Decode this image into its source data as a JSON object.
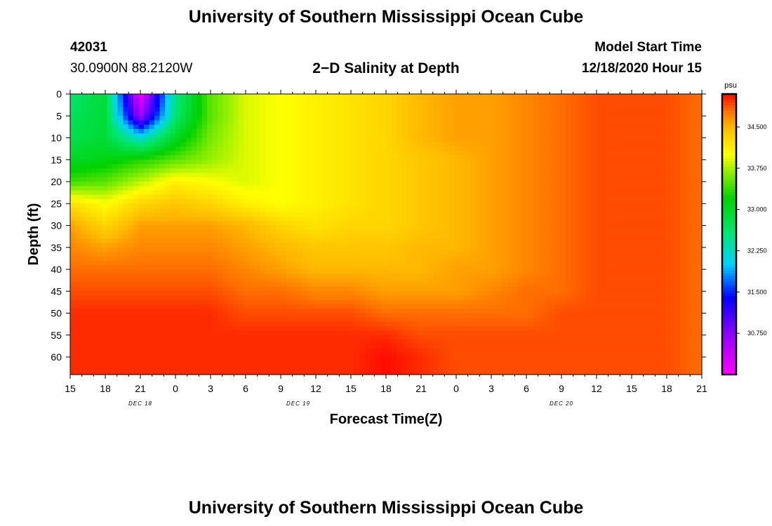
{
  "header": {
    "title": "University of Southern Mississippi Ocean Cube",
    "station_id": "42031",
    "coordinates": "30.0900N 88.2120W",
    "plot_title": "2−D Salinity at Depth",
    "model_label": "Model Start Time",
    "model_time": "12/18/2020 Hour 15"
  },
  "footer": {
    "title": "University of Southern Mississippi Ocean Cube"
  },
  "chart_data": {
    "type": "heatmap",
    "title": "2−D Salinity at Depth",
    "xlabel": "Forecast Time(Z)",
    "ylabel": "Depth (ft)",
    "x_tick_labels": [
      "15",
      "18",
      "21",
      "0",
      "3",
      "6",
      "9",
      "12",
      "15",
      "18",
      "21",
      "0",
      "3",
      "6",
      "9",
      "12",
      "15",
      "18",
      "21"
    ],
    "date_labels": [
      {
        "label": "DEC 18",
        "tick_index": 2
      },
      {
        "label": "DEC 19",
        "tick_index": 6.5
      },
      {
        "label": "DEC 20",
        "tick_index": 14
      }
    ],
    "y_ticks": [
      0,
      5,
      10,
      15,
      20,
      25,
      30,
      35,
      40,
      45,
      50,
      55,
      60
    ],
    "y_range": [
      0,
      64
    ],
    "colorbar": {
      "unit": "psu",
      "ticks": [
        "30.750",
        "31.500",
        "32.250",
        "33.000",
        "33.750",
        "34.500"
      ],
      "tick_values": [
        30.75,
        31.5,
        32.25,
        33.0,
        33.75,
        34.5
      ],
      "min": 30.0,
      "max": 35.1
    },
    "times_hours": [
      0,
      3,
      6,
      9,
      12,
      15,
      18,
      21,
      24,
      27,
      30,
      33,
      36,
      39,
      42,
      45,
      48,
      51,
      54
    ],
    "depths_ft": [
      0,
      5,
      10,
      15,
      20,
      25,
      30,
      35,
      40,
      45,
      50,
      55,
      60,
      64
    ],
    "salinity_psu": [
      [
        32.6,
        32.9,
        30.1,
        32.5,
        33.5,
        33.9,
        34.0,
        34.1,
        34.2,
        34.3,
        34.5,
        34.6,
        34.6,
        34.7,
        34.8,
        34.9,
        34.9,
        34.9,
        34.8
      ],
      [
        32.7,
        32.9,
        30.6,
        32.6,
        33.5,
        33.9,
        34.0,
        34.1,
        34.2,
        34.3,
        34.5,
        34.6,
        34.6,
        34.7,
        34.8,
        34.9,
        34.9,
        34.9,
        34.8
      ],
      [
        32.8,
        32.9,
        32.2,
        33.0,
        33.6,
        33.9,
        34.0,
        34.1,
        34.2,
        34.3,
        34.5,
        34.6,
        34.6,
        34.7,
        34.8,
        34.9,
        34.9,
        34.9,
        34.8
      ],
      [
        33.0,
        33.1,
        33.3,
        33.5,
        33.7,
        33.9,
        34.0,
        34.1,
        34.2,
        34.3,
        34.4,
        34.5,
        34.6,
        34.7,
        34.8,
        34.9,
        34.9,
        34.9,
        34.8
      ],
      [
        33.4,
        33.5,
        33.8,
        34.1,
        34.0,
        33.9,
        34.0,
        34.1,
        34.2,
        34.3,
        34.4,
        34.5,
        34.6,
        34.7,
        34.8,
        34.9,
        34.9,
        34.9,
        34.8
      ],
      [
        34.2,
        34.0,
        34.3,
        34.4,
        34.3,
        34.1,
        34.0,
        34.1,
        34.2,
        34.3,
        34.4,
        34.5,
        34.6,
        34.7,
        34.8,
        34.9,
        34.9,
        34.9,
        34.8
      ],
      [
        34.6,
        34.3,
        34.6,
        34.6,
        34.6,
        34.5,
        34.3,
        34.2,
        34.3,
        34.3,
        34.4,
        34.5,
        34.6,
        34.7,
        34.8,
        34.9,
        34.9,
        34.9,
        34.8
      ],
      [
        34.7,
        34.6,
        34.7,
        34.7,
        34.7,
        34.6,
        34.5,
        34.4,
        34.4,
        34.4,
        34.5,
        34.5,
        34.6,
        34.7,
        34.8,
        34.9,
        34.9,
        34.9,
        34.8
      ],
      [
        34.8,
        34.8,
        34.8,
        34.8,
        34.8,
        34.7,
        34.6,
        34.5,
        34.5,
        34.5,
        34.5,
        34.6,
        34.6,
        34.7,
        34.8,
        34.9,
        34.9,
        34.9,
        34.8
      ],
      [
        34.9,
        34.9,
        34.9,
        34.9,
        34.9,
        34.8,
        34.8,
        34.7,
        34.7,
        34.6,
        34.6,
        34.6,
        34.7,
        34.8,
        34.8,
        34.9,
        34.9,
        34.9,
        34.8
      ],
      [
        35.0,
        35.0,
        35.0,
        35.0,
        35.0,
        34.9,
        34.9,
        34.9,
        34.9,
        34.8,
        34.8,
        34.8,
        34.8,
        34.8,
        34.9,
        34.9,
        34.9,
        34.9,
        34.8
      ],
      [
        35.0,
        35.0,
        35.0,
        35.0,
        35.0,
        35.0,
        35.0,
        35.0,
        35.0,
        35.0,
        34.9,
        34.9,
        34.9,
        34.9,
        34.9,
        34.9,
        34.9,
        34.9,
        34.8
      ],
      [
        35.0,
        35.0,
        35.0,
        35.0,
        35.0,
        35.0,
        35.0,
        35.0,
        35.0,
        35.1,
        35.0,
        34.9,
        34.9,
        34.9,
        34.9,
        34.9,
        34.9,
        34.9,
        34.8
      ],
      [
        35.0,
        35.0,
        35.0,
        35.0,
        35.0,
        35.0,
        35.0,
        35.0,
        35.0,
        35.1,
        35.0,
        34.9,
        34.9,
        34.9,
        34.9,
        34.9,
        34.9,
        34.9,
        34.8
      ]
    ]
  }
}
